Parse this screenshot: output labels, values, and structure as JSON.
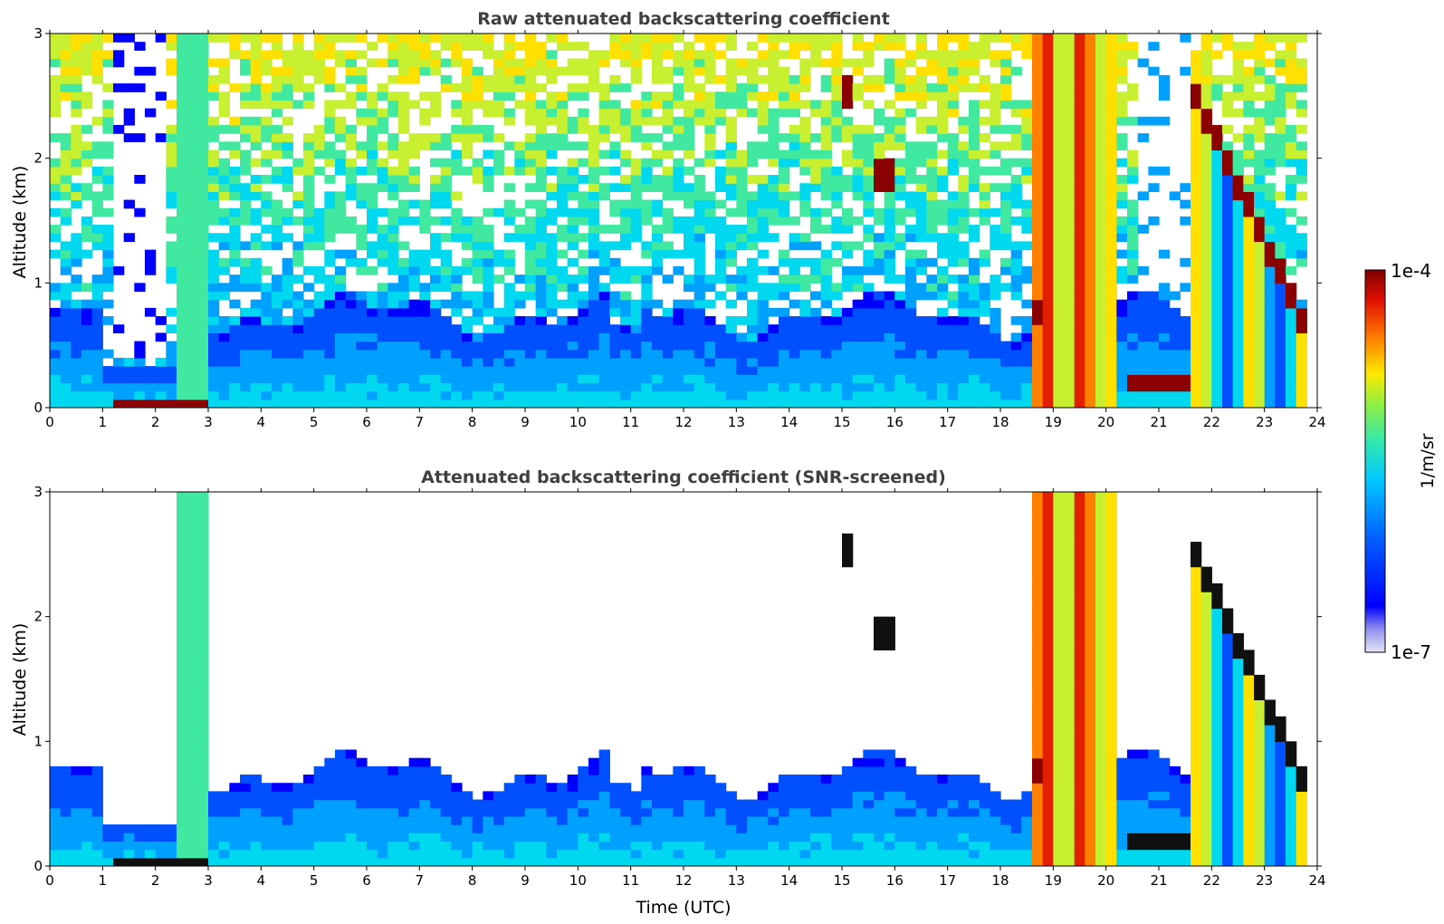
{
  "chart_data": [
    {
      "type": "heatmap",
      "title": "Raw attenuated backscattering coefficient",
      "xlabel": "",
      "ylabel": "Altitude (km)",
      "xlim": [
        0,
        24
      ],
      "ylim": [
        0,
        3
      ],
      "x_ticks": [
        "0",
        "1",
        "2",
        "3",
        "4",
        "5",
        "6",
        "7",
        "8",
        "9",
        "10",
        "11",
        "12",
        "13",
        "14",
        "15",
        "16",
        "17",
        "18",
        "19",
        "20",
        "21",
        "22",
        "23",
        "24"
      ],
      "y_ticks": [
        "0",
        "1",
        "2",
        "3"
      ],
      "features": [
        {
          "desc": "near-surface boundary layer",
          "x": [
            0,
            18.5
          ],
          "y": [
            0,
            0.8
          ],
          "level": "low-moderate"
        },
        {
          "desc": "low dense layer",
          "x": [
            1.1,
            3.1
          ],
          "y": [
            0,
            0.1
          ],
          "level": "high"
        },
        {
          "desc": "vertical columns",
          "x": [
            2.4,
            3.0
          ],
          "y": [
            0,
            3
          ],
          "level": "moderate"
        },
        {
          "desc": "scattered cloud patches",
          "x": [
            15.5,
            16.5
          ],
          "y": [
            1.4,
            2.0
          ],
          "level": "high"
        },
        {
          "desc": "dense layer / precipitation",
          "x": [
            18.5,
            20.2
          ],
          "y": [
            0,
            3
          ],
          "level": "high"
        },
        {
          "desc": "cloud base layer",
          "x": [
            20.3,
            21.6
          ],
          "y": [
            0.15,
            0.3
          ],
          "level": "high"
        },
        {
          "desc": "descending cloud layer",
          "x": [
            21.6,
            23.8
          ],
          "y": [
            0.5,
            2.8
          ],
          "level": "high"
        }
      ]
    },
    {
      "type": "heatmap",
      "title": "Attenuated backscattering coefficient (SNR-screened)",
      "xlabel": "Time (UTC)",
      "ylabel": "Altitude (km)",
      "xlim": [
        0,
        24
      ],
      "ylim": [
        0,
        3
      ],
      "x_ticks": [
        "0",
        "1",
        "2",
        "3",
        "4",
        "5",
        "6",
        "7",
        "8",
        "9",
        "10",
        "11",
        "12",
        "13",
        "14",
        "15",
        "16",
        "17",
        "18",
        "19",
        "20",
        "21",
        "22",
        "23",
        "24"
      ],
      "y_ticks": [
        "0",
        "1",
        "2",
        "3"
      ],
      "features": [
        {
          "desc": "screened boundary layer",
          "x": [
            0,
            18.5
          ],
          "y": [
            0,
            1.0
          ],
          "level": "low-moderate"
        },
        {
          "desc": "low dense layer",
          "x": [
            1.1,
            3.1
          ],
          "y": [
            0,
            0.1
          ],
          "level": "saturated"
        },
        {
          "desc": "dense layer / precipitation",
          "x": [
            18.5,
            20.2
          ],
          "y": [
            0,
            3
          ],
          "level": "high"
        },
        {
          "desc": "cloud base layer",
          "x": [
            20.3,
            21.6
          ],
          "y": [
            0.15,
            0.3
          ],
          "level": "saturated"
        },
        {
          "desc": "descending cloud layer",
          "x": [
            21.6,
            23.8
          ],
          "y": [
            0.5,
            2.8
          ],
          "level": "saturated"
        }
      ]
    }
  ],
  "colorbar": {
    "label": "1/m/sr",
    "max_label": "1e-4",
    "min_label": "1e-7",
    "scale": "log",
    "colormap": "jet",
    "min": 1e-07,
    "max": 0.0001
  },
  "colors": {
    "colormap": [
      "#e6e6f5",
      "#b8b8f0",
      "#0000ff",
      "#0050ff",
      "#00a0ff",
      "#00d8f0",
      "#40e8a0",
      "#c8f030",
      "#ffe000",
      "#ff8000",
      "#e02000",
      "#8b0000"
    ],
    "saturated": "#101010"
  }
}
